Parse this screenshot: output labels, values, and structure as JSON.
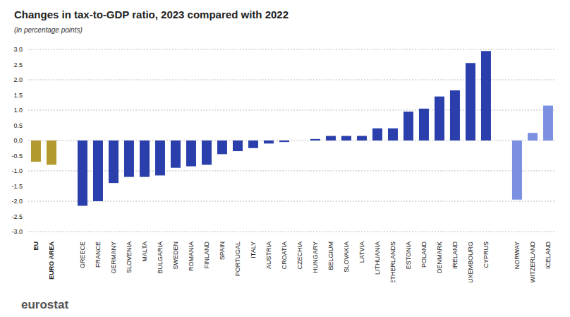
{
  "chart_data": {
    "type": "bar",
    "title": "Changes in tax-to-GDP ratio, 2023 compared with 2022",
    "subtitle": "(in percentage points)",
    "footer": "eurostat",
    "categories": [
      "EU",
      "EURO AREA",
      null,
      "GREECE",
      "FRANCE",
      "GERMANY",
      "SLOVENIA",
      "MALTA",
      "BULGARIA",
      "SWEDEN",
      "ROMANIA",
      "FINLAND",
      "SPAIN",
      "PORTUGAL",
      "ITALY",
      "AUSTRIA",
      "CROATIA",
      "CZECHIA",
      "HUNGARY",
      "BELGIUM",
      "SLOVAKIA",
      "LATVIA",
      "LITHUANIA",
      "NETHERLANDS",
      "ESTONIA",
      "POLAND",
      "DENMARK",
      "IRELAND",
      "LUXEMBOURG",
      "CYPRUS",
      null,
      "NORWAY",
      "SWITZERLAND",
      "ICELAND"
    ],
    "values": [
      -0.7,
      -0.8,
      null,
      -2.15,
      -2.0,
      -1.4,
      -1.2,
      -1.2,
      -1.15,
      -0.9,
      -0.85,
      -0.8,
      -0.45,
      -0.35,
      -0.25,
      -0.1,
      -0.05,
      0.0,
      0.05,
      0.15,
      0.15,
      0.15,
      0.4,
      0.4,
      0.95,
      1.05,
      1.45,
      1.65,
      2.55,
      2.95,
      null,
      -1.95,
      0.25,
      1.15
    ],
    "colors": [
      "#b29a2e",
      "#b29a2e",
      null,
      "#2a3fab",
      "#2a3fab",
      "#2a3fab",
      "#2a3fab",
      "#2a3fab",
      "#2a3fab",
      "#2a3fab",
      "#2a3fab",
      "#2a3fab",
      "#2a3fab",
      "#2a3fab",
      "#2a3fab",
      "#2a3fab",
      "#2a3fab",
      "#2a3fab",
      "#2a3fab",
      "#2a3fab",
      "#2a3fab",
      "#2a3fab",
      "#2a3fab",
      "#2a3fab",
      "#2a3fab",
      "#2a3fab",
      "#2a3fab",
      "#2a3fab",
      "#2a3fab",
      "#2a3fab",
      null,
      "#7b90e0",
      "#7b90e0",
      "#7b90e0"
    ],
    "ylim": [
      -3,
      3
    ],
    "yticks": [
      {
        "value": -3,
        "label": "-3.0"
      },
      {
        "value": -2.5,
        "label": "-2.5"
      },
      {
        "value": -2,
        "label": "-2.0"
      },
      {
        "value": -1.5,
        "label": "-1.5"
      },
      {
        "value": -1,
        "label": "-1.0"
      },
      {
        "value": -0.5,
        "label": "-0.5"
      },
      {
        "value": 0,
        "label": "0.0"
      },
      {
        "value": 0.5,
        "label": "0.5"
      },
      {
        "value": 1,
        "label": "1.0"
      },
      {
        "value": 1.5,
        "label": "1.5"
      },
      {
        "value": 2,
        "label": "2.0"
      },
      {
        "value": 2.5,
        "label": "2.5"
      },
      {
        "value": 3,
        "label": "3.0"
      }
    ],
    "grid": true
  }
}
